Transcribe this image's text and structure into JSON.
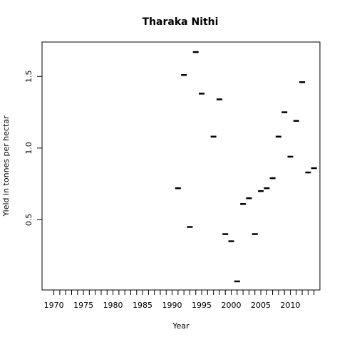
{
  "chart_data": {
    "type": "scatter",
    "title": "Tharaka Nithi",
    "xlabel": "Year",
    "ylabel": "Yield in tonnes per hectar",
    "xlim": [
      1968,
      2015
    ],
    "ylim": [
      0.01,
      1.74
    ],
    "x_ticks": [
      1970,
      1971,
      1972,
      1973,
      1974,
      1975,
      1976,
      1977,
      1978,
      1979,
      1980,
      1981,
      1982,
      1983,
      1984,
      1985,
      1986,
      1987,
      1988,
      1989,
      1990,
      1991,
      1992,
      1993,
      1994,
      1995,
      1996,
      1997,
      1998,
      1999,
      2000,
      2001,
      2002,
      2003,
      2004,
      2005,
      2006,
      2007,
      2008,
      2009,
      2010,
      2011,
      2012,
      2013,
      2014
    ],
    "x_tick_labels": [
      {
        "x": 1970,
        "label": "1970"
      },
      {
        "x": 1975,
        "label": "1975"
      },
      {
        "x": 1980,
        "label": "1980"
      },
      {
        "x": 1985,
        "label": "1985"
      },
      {
        "x": 1990,
        "label": "1990"
      },
      {
        "x": 1995,
        "label": "1995"
      },
      {
        "x": 2000,
        "label": "2000"
      },
      {
        "x": 2005,
        "label": "2005"
      },
      {
        "x": 2010,
        "label": "2010"
      }
    ],
    "y_ticks": [
      {
        "y": 0.5,
        "label": "0.5"
      },
      {
        "y": 1.0,
        "label": "1.0"
      },
      {
        "y": 1.5,
        "label": "1.5"
      }
    ],
    "marker": "dash",
    "color": "#000000",
    "grid": false,
    "points": [
      {
        "x": 1991,
        "y": 0.72
      },
      {
        "x": 1992,
        "y": 1.51
      },
      {
        "x": 1993,
        "y": 0.45
      },
      {
        "x": 1994,
        "y": 1.67
      },
      {
        "x": 1995,
        "y": 1.38
      },
      {
        "x": 1997,
        "y": 1.08
      },
      {
        "x": 1998,
        "y": 1.34
      },
      {
        "x": 1999,
        "y": 0.4
      },
      {
        "x": 2000,
        "y": 0.35
      },
      {
        "x": 2001,
        "y": 0.07
      },
      {
        "x": 2002,
        "y": 0.61
      },
      {
        "x": 2003,
        "y": 0.65
      },
      {
        "x": 2004,
        "y": 0.4
      },
      {
        "x": 2005,
        "y": 0.7
      },
      {
        "x": 2006,
        "y": 0.72
      },
      {
        "x": 2007,
        "y": 0.79
      },
      {
        "x": 2008,
        "y": 1.08
      },
      {
        "x": 2009,
        "y": 1.25
      },
      {
        "x": 2010,
        "y": 0.94
      },
      {
        "x": 2011,
        "y": 1.19
      },
      {
        "x": 2012,
        "y": 1.46
      },
      {
        "x": 2013,
        "y": 0.83
      },
      {
        "x": 2014,
        "y": 0.86
      }
    ]
  }
}
